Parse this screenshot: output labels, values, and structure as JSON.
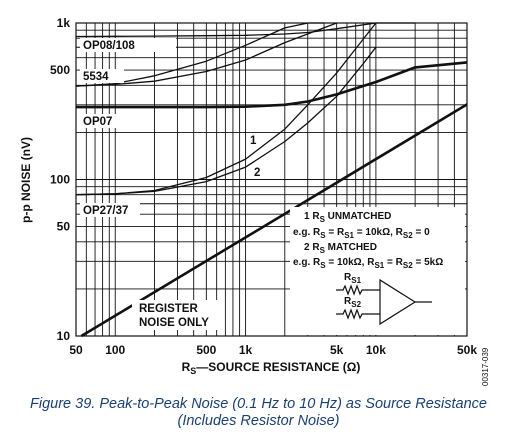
{
  "chart_data": {
    "type": "line",
    "title": "",
    "xlabel": "RS—SOURCE RESISTANCE (Ω)",
    "xlabel_parts": {
      "main": "R",
      "sub": "S",
      "rest": "—SOURCE RESISTANCE (Ω)"
    },
    "ylabel": "p-p NOISE (nV)",
    "x_scale": "log",
    "y_scale": "log",
    "xlim": [
      50,
      50000
    ],
    "ylim": [
      10,
      1000
    ],
    "grid": true,
    "x_ticks": [
      {
        "value": 50,
        "label": "50"
      },
      {
        "value": 100,
        "label": "100"
      },
      {
        "value": 500,
        "label": "500"
      },
      {
        "value": 1000,
        "label": "1k"
      },
      {
        "value": 5000,
        "label": "5k"
      },
      {
        "value": 10000,
        "label": "10k"
      },
      {
        "value": 50000,
        "label": "50k"
      }
    ],
    "y_ticks": [
      {
        "value": 10,
        "label": "10"
      },
      {
        "value": 50,
        "label": "50"
      },
      {
        "value": 100,
        "label": "100"
      },
      {
        "value": 500,
        "label": "500"
      },
      {
        "value": 1000,
        "label": "1k"
      }
    ],
    "series": [
      {
        "name": "OP08/108",
        "style": "thin",
        "x": [
          50,
          100,
          200,
          500,
          1000,
          2000,
          3000,
          5000,
          10000,
          20000
        ],
        "y": [
          820,
          822,
          825,
          830,
          835,
          850,
          870,
          920,
          1000,
          1000
        ]
      },
      {
        "name": "5534 (1)",
        "style": "thin",
        "x": [
          50,
          100,
          200,
          500,
          1000,
          2000,
          3000,
          4000
        ],
        "y": [
          395,
          410,
          460,
          570,
          720,
          930,
          1000,
          1000
        ]
      },
      {
        "name": "5534 (2)",
        "style": "thin",
        "x": [
          50,
          100,
          200,
          500,
          1000,
          2000,
          5000
        ],
        "y": [
          395,
          405,
          425,
          490,
          580,
          750,
          1000
        ]
      },
      {
        "name": "OP07",
        "style": "thick",
        "x": [
          50,
          100,
          500,
          1000,
          2000,
          3000,
          5000,
          10000,
          20000,
          50000
        ],
        "y": [
          290,
          290,
          290,
          292,
          300,
          315,
          350,
          420,
          520,
          560
        ]
      },
      {
        "name": "OP27/37 (1)",
        "style": "thin",
        "x": [
          50,
          100,
          200,
          500,
          1000,
          2000,
          3000,
          5000,
          10000
        ],
        "y": [
          80,
          81,
          85,
          103,
          135,
          210,
          300,
          480,
          1000
        ]
      },
      {
        "name": "OP27/37 (2)",
        "style": "thin",
        "x": [
          50,
          100,
          200,
          500,
          1000,
          2000,
          3000,
          5000,
          8000,
          10000
        ],
        "y": [
          80,
          81,
          84,
          97,
          120,
          175,
          230,
          340,
          550,
          700
        ]
      },
      {
        "name": "REGISTER NOISE ONLY",
        "style": "thick",
        "x": [
          55,
          50000
        ],
        "y": [
          10,
          302
        ]
      }
    ],
    "annotations": {
      "series_labels": {
        "op08": "OP08/108",
        "n5534": "5534",
        "op07": "OP07",
        "op27": "OP27/37",
        "register_line1": "REGISTER",
        "register_line2": "NOISE ONLY",
        "curve1": "1",
        "curve2": "2"
      },
      "legend": {
        "l1_pre": "1 R",
        "l1_sub": "S",
        "l1_post": " UNMATCHED",
        "l2": "e.g. R",
        "l2_s1": "S",
        "l2_a": " = R",
        "l2_s2": "S1",
        "l2_b": " = 10kΩ, R",
        "l2_s3": "S2",
        "l2_c": " = 0",
        "l3_pre": "2 R",
        "l3_sub": "S",
        "l3_post": " MATCHED",
        "l4": "e.g. R",
        "l4_s1": "S",
        "l4_a": " = 10kΩ, R",
        "l4_s2": "S1",
        "l4_b": " = R",
        "l4_s3": "S2",
        "l4_c": " = 5kΩ",
        "rs1": "R",
        "rs1_sub": "S1",
        "rs2": "R",
        "rs2_sub": "S2"
      },
      "side_id": "00317-039"
    }
  },
  "caption": {
    "line1": "Figure 39. Peak-to-Peak Noise (0.1 Hz to 10 Hz) as Source Resistance",
    "line2": "(Includes Resistor Noise)"
  }
}
